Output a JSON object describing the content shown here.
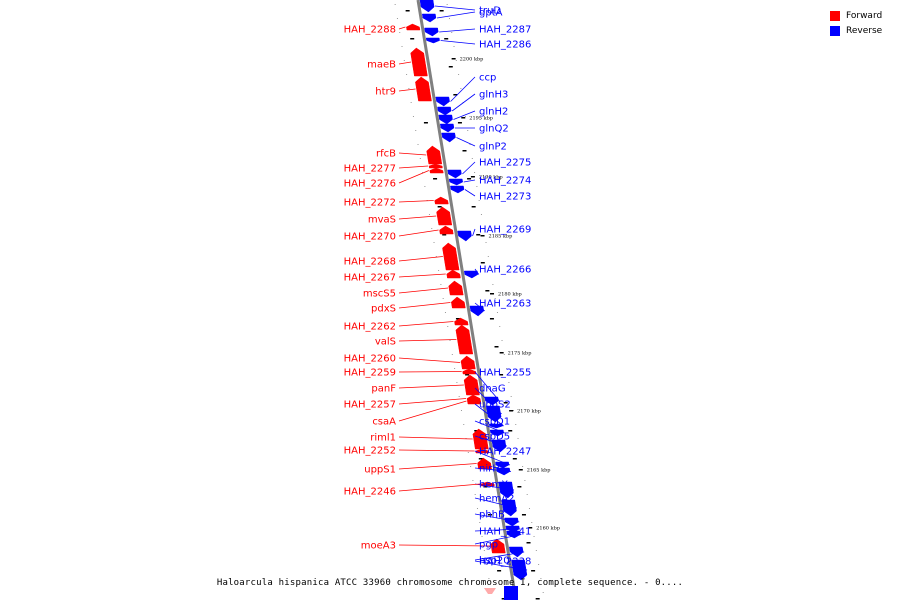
{
  "colors": {
    "forward": "#ff0000",
    "reverse": "#0000ff",
    "backbone": "#808080"
  },
  "legend": [
    {
      "label": "Forward",
      "color": "#ff0000"
    },
    {
      "label": "Reverse",
      "color": "#0000ff"
    }
  ],
  "caption": "Haloarcula hispanica ATCC 33960 chromosome chromosome I, complete sequence. - 0....",
  "scale_ticks": [
    "2200 kbp",
    "2195 kbp",
    "2190 kbp",
    "2185 kbp",
    "2180 kbp",
    "2175 kbp",
    "2170 kbp",
    "2165 kbp",
    "2160 kbp"
  ],
  "genes": [
    {
      "name": "truD",
      "strand": "reverse"
    },
    {
      "name": "gptA",
      "strand": "reverse"
    },
    {
      "name": "HAH_2288",
      "strand": "forward"
    },
    {
      "name": "HAH_2287",
      "strand": "reverse"
    },
    {
      "name": "HAH_2286",
      "strand": "reverse"
    },
    {
      "name": "maeB",
      "strand": "forward"
    },
    {
      "name": "htr9",
      "strand": "forward"
    },
    {
      "name": "ccp",
      "strand": "reverse"
    },
    {
      "name": "glnH3",
      "strand": "reverse"
    },
    {
      "name": "glnH2",
      "strand": "reverse"
    },
    {
      "name": "glnQ2",
      "strand": "reverse"
    },
    {
      "name": "glnP2",
      "strand": "reverse"
    },
    {
      "name": "rfcB",
      "strand": "forward"
    },
    {
      "name": "HAH_2277",
      "strand": "forward"
    },
    {
      "name": "HAH_2276",
      "strand": "forward"
    },
    {
      "name": "HAH_2275",
      "strand": "reverse"
    },
    {
      "name": "HAH_2274",
      "strand": "reverse"
    },
    {
      "name": "HAH_2273",
      "strand": "reverse"
    },
    {
      "name": "HAH_2272",
      "strand": "forward"
    },
    {
      "name": "mvaS",
      "strand": "forward"
    },
    {
      "name": "HAH_2270",
      "strand": "forward"
    },
    {
      "name": "HAH_2269",
      "strand": "reverse"
    },
    {
      "name": "HAH_2268",
      "strand": "forward"
    },
    {
      "name": "HAH_2267",
      "strand": "forward"
    },
    {
      "name": "HAH_2266",
      "strand": "reverse"
    },
    {
      "name": "mscS5",
      "strand": "forward"
    },
    {
      "name": "pdxS",
      "strand": "forward"
    },
    {
      "name": "HAH_2263",
      "strand": "reverse"
    },
    {
      "name": "HAH_2262",
      "strand": "forward"
    },
    {
      "name": "valS",
      "strand": "forward"
    },
    {
      "name": "HAH_2260",
      "strand": "forward"
    },
    {
      "name": "HAH_2259",
      "strand": "forward"
    },
    {
      "name": "panF",
      "strand": "forward"
    },
    {
      "name": "HAH_2257",
      "strand": "forward"
    },
    {
      "name": "csaA",
      "strand": "forward"
    },
    {
      "name": "HAH_2255",
      "strand": "reverse"
    },
    {
      "name": "dnaG",
      "strand": "reverse"
    },
    {
      "name": "uppS2",
      "strand": "reverse"
    },
    {
      "name": "cspD1",
      "strand": "reverse"
    },
    {
      "name": "cspD5",
      "strand": "reverse"
    },
    {
      "name": "riml1",
      "strand": "forward"
    },
    {
      "name": "HAH_2252",
      "strand": "forward"
    },
    {
      "name": "HAH_2247",
      "strand": "reverse"
    },
    {
      "name": "nirH3",
      "strand": "reverse"
    },
    {
      "name": "uppS1",
      "strand": "forward"
    },
    {
      "name": "hemX",
      "strand": "reverse"
    },
    {
      "name": "HAH_2246",
      "strand": "forward"
    },
    {
      "name": "hemA2",
      "strand": "reverse"
    },
    {
      "name": "phhB",
      "strand": "reverse"
    },
    {
      "name": "HAH_2241",
      "strand": "reverse"
    },
    {
      "name": "pgp",
      "strand": "reverse"
    },
    {
      "name": "moeA3",
      "strand": "forward"
    },
    {
      "name": "hsp20",
      "strand": "reverse"
    },
    {
      "name": "HAH_2238",
      "strand": "reverse"
    }
  ]
}
